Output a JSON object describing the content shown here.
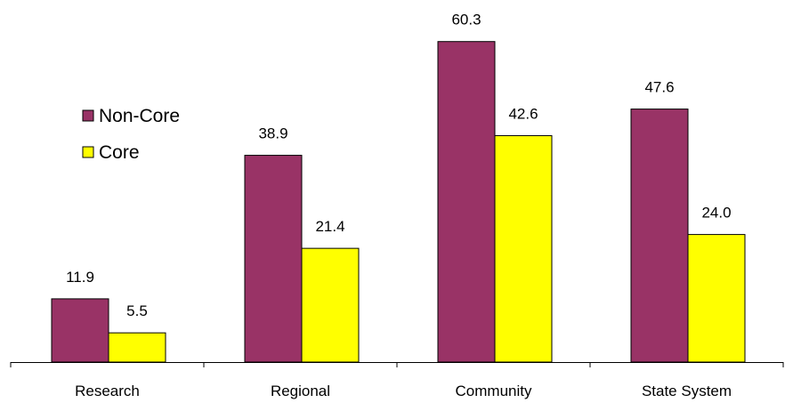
{
  "chart_data": {
    "type": "bar",
    "categories": [
      "Research",
      "Regional",
      "Community",
      "State System"
    ],
    "series": [
      {
        "name": "Non-Core",
        "values": [
          11.9,
          38.9,
          60.3,
          47.6
        ],
        "color": "#993366"
      },
      {
        "name": "Core",
        "values": [
          5.5,
          21.4,
          42.6,
          24.0
        ],
        "color": "#FFFF00"
      }
    ],
    "value_labels": [
      [
        "11.9",
        "38.9",
        "60.3",
        "47.6"
      ],
      [
        "5.5",
        "21.4",
        "42.6",
        "24.0"
      ]
    ],
    "ylim": [
      0,
      65
    ],
    "grid": false,
    "y_axis_visible": false,
    "legend_position": "upper-left"
  }
}
